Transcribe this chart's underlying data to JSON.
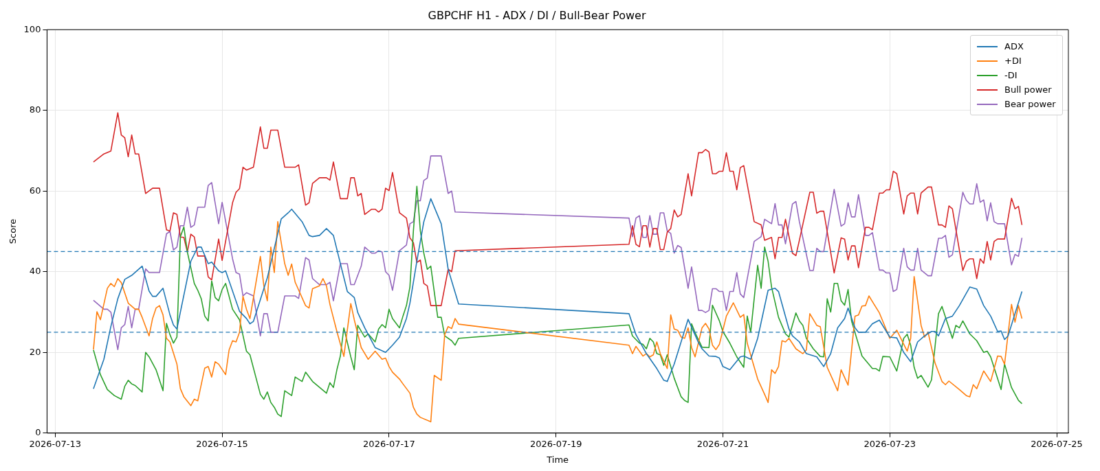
{
  "chart_data": {
    "type": "line",
    "title": "GBPCHF H1 - ADX / DI / Bull-Bear Power",
    "xlabel": "Time",
    "ylabel": "Score",
    "xlim": [
      "2026-07-12T21:39",
      "2026-07-25T03:21"
    ],
    "xticks": [
      "2026-07-13",
      "2026-07-15",
      "2026-07-17",
      "2026-07-19",
      "2026-07-21",
      "2026-07-23",
      "2026-07-25"
    ],
    "ylim": [
      0,
      100
    ],
    "yticks": [
      0,
      20,
      40,
      60,
      80,
      100
    ],
    "grid": true,
    "legend": "top right",
    "marker": "none",
    "line_style": "solid",
    "ref_lines": [
      {
        "axis": "y",
        "value": 45,
        "color": "#1f77b4",
        "line_style": "dashed"
      },
      {
        "axis": "y",
        "value": 25,
        "color": "#1f77b4",
        "line_style": "dashed"
      }
    ],
    "series": [
      {
        "name": "ADX",
        "color": "#1f77b4",
        "x": [
          "2026-07-13T11:00",
          "2026-07-13T14:00",
          "2026-07-13T16:00",
          "2026-07-13T18:00",
          "2026-07-13T20:00",
          "2026-07-13T22:00",
          "2026-07-14T01:00",
          "2026-07-14T03:00",
          "2026-07-14T04:00",
          "2026-07-14T05:00",
          "2026-07-14T07:00",
          "2026-07-14T09:00",
          "2026-07-14T10:00",
          "2026-07-14T11:00",
          "2026-07-14T15:00",
          "2026-07-14T17:00",
          "2026-07-14T18:00",
          "2026-07-14T20:00",
          "2026-07-14T21:00",
          "2026-07-14T23:00",
          "2026-07-15T00:00",
          "2026-07-15T01:00",
          "2026-07-15T05:00",
          "2026-07-15T07:00",
          "2026-07-15T08:00",
          "2026-07-15T09:00",
          "2026-07-15T13:00",
          "2026-07-15T17:00",
          "2026-07-15T19:00",
          "2026-07-15T20:00",
          "2026-07-15T23:00",
          "2026-07-16T01:00",
          "2026-07-16T02:00",
          "2026-07-16T04:00",
          "2026-07-16T06:00",
          "2026-07-16T08:00",
          "2026-07-16T12:00",
          "2026-07-16T14:00",
          "2026-07-16T15:00",
          "2026-07-16T17:00",
          "2026-07-16T20:00",
          "2026-07-16T23:00",
          "2026-07-17T01:00",
          "2026-07-17T03:00",
          "2026-07-17T05:00",
          "2026-07-17T06:00",
          "2026-07-17T08:00",
          "2026-07-17T10:00",
          "2026-07-17T12:00",
          "2026-07-17T15:00",
          "2026-07-17T17:00",
          "2026-07-17T20:00",
          "2026-07-19T21:00",
          "2026-07-19T23:00",
          "2026-07-20T02:00",
          "2026-07-20T05:00",
          "2026-07-20T07:00",
          "2026-07-20T08:00",
          "2026-07-20T10:00",
          "2026-07-20T14:00",
          "2026-07-20T17:00",
          "2026-07-20T18:00",
          "2026-07-20T20:00",
          "2026-07-20T22:00",
          "2026-07-20T23:00",
          "2026-07-21T00:00",
          "2026-07-21T02:00",
          "2026-07-21T05:00",
          "2026-07-21T06:00",
          "2026-07-21T08:00",
          "2026-07-21T10:00",
          "2026-07-21T13:00",
          "2026-07-21T15:00",
          "2026-07-21T16:00",
          "2026-07-21T19:00",
          "2026-07-21T20:00",
          "2026-07-21T22:00",
          "2026-07-22T00:00",
          "2026-07-22T03:00",
          "2026-07-22T05:00",
          "2026-07-22T07:00",
          "2026-07-22T09:00",
          "2026-07-22T11:00",
          "2026-07-22T12:00",
          "2026-07-22T14:00",
          "2026-07-22T15:00",
          "2026-07-22T17:00",
          "2026-07-22T19:00",
          "2026-07-22T21:00",
          "2026-07-23T00:00",
          "2026-07-23T02:00",
          "2026-07-23T04:00",
          "2026-07-23T06:00",
          "2026-07-23T08:00",
          "2026-07-23T10:00",
          "2026-07-23T12:00",
          "2026-07-23T13:00",
          "2026-07-23T14:00",
          "2026-07-23T16:00",
          "2026-07-23T18:00",
          "2026-07-23T20:00",
          "2026-07-23T23:00",
          "2026-07-24T01:00",
          "2026-07-24T03:00",
          "2026-07-24T05:00",
          "2026-07-24T07:00",
          "2026-07-24T08:00",
          "2026-07-24T09:00",
          "2026-07-24T10:00",
          "2026-07-24T14:00"
        ],
        "values": [
          11.0,
          18.3,
          26.4,
          33.3,
          38.1,
          39.1,
          41.4,
          35.2,
          33.9,
          33.9,
          35.9,
          29.3,
          26.8,
          25.8,
          42.6,
          46.1,
          46.1,
          42.0,
          42.4,
          40.2,
          39.8,
          40.2,
          30.2,
          28.4,
          27.1,
          27.7,
          38.5,
          53.1,
          54.6,
          55.5,
          52.4,
          49.0,
          48.7,
          49.0,
          50.7,
          49.0,
          35.1,
          33.6,
          29.9,
          26.1,
          21.2,
          20.0,
          21.8,
          23.8,
          28.4,
          32.2,
          42.6,
          52.4,
          58.1,
          51.9,
          40.6,
          32.0,
          29.6,
          24.4,
          19.7,
          16.0,
          13.1,
          12.8,
          17.1,
          28.2,
          22.4,
          20.9,
          19.1,
          19.0,
          18.6,
          16.5,
          15.7,
          18.9,
          19.1,
          18.3,
          23.5,
          35.4,
          35.9,
          35.1,
          25.8,
          24.1,
          22.6,
          19.7,
          18.9,
          16.5,
          19.7,
          26.1,
          28.4,
          31.0,
          26.1,
          25.0,
          25.0,
          27.1,
          28.0,
          23.8,
          23.6,
          20.0,
          17.7,
          22.6,
          24.1,
          25.2,
          25.2,
          24.1,
          28.4,
          29.0,
          31.6,
          36.2,
          35.7,
          31.6,
          29.0,
          25.2,
          25.3,
          23.2,
          24.1,
          35.1
        ]
      },
      {
        "name": "+DI",
        "color": "#ff7f0e",
        "x": [
          "2026-07-13T11:00",
          "2026-07-13T12:00",
          "2026-07-13T13:00",
          "2026-07-13T15:00",
          "2026-07-13T16:00",
          "2026-07-13T17:00",
          "2026-07-13T18:00",
          "2026-07-13T19:00",
          "2026-07-13T21:00",
          "2026-07-13T23:00",
          "2026-07-14T00:00",
          "2026-07-14T01:00",
          "2026-07-14T03:00",
          "2026-07-14T04:00",
          "2026-07-14T05:00",
          "2026-07-14T06:00",
          "2026-07-14T07:00",
          "2026-07-14T08:00",
          "2026-07-14T09:00",
          "2026-07-14T11:00",
          "2026-07-14T12:00",
          "2026-07-14T13:00",
          "2026-07-14T15:00",
          "2026-07-14T16:00",
          "2026-07-14T17:00",
          "2026-07-14T19:00",
          "2026-07-14T20:00",
          "2026-07-14T21:00",
          "2026-07-14T22:00",
          "2026-07-14T23:00",
          "2026-07-15T01:00",
          "2026-07-15T02:00",
          "2026-07-15T03:00",
          "2026-07-15T04:00",
          "2026-07-15T05:00",
          "2026-07-15T06:00",
          "2026-07-15T07:00",
          "2026-07-15T08:00",
          "2026-07-15T11:00",
          "2026-07-15T12:00",
          "2026-07-15T13:00",
          "2026-07-15T14:00",
          "2026-07-15T15:00",
          "2026-07-15T16:00",
          "2026-07-15T18:00",
          "2026-07-15T19:00",
          "2026-07-15T20:00",
          "2026-07-15T21:00",
          "2026-07-16T00:00",
          "2026-07-16T01:00",
          "2026-07-16T02:00",
          "2026-07-16T04:00",
          "2026-07-16T05:00",
          "2026-07-16T06:00",
          "2026-07-16T07:00",
          "2026-07-16T09:00",
          "2026-07-16T11:00",
          "2026-07-16T13:00",
          "2026-07-16T14:00",
          "2026-07-16T15:00",
          "2026-07-16T16:00",
          "2026-07-16T18:00",
          "2026-07-16T20:00",
          "2026-07-16T22:00",
          "2026-07-16T23:00",
          "2026-07-17T00:00",
          "2026-07-17T01:00",
          "2026-07-17T03:00",
          "2026-07-17T04:00",
          "2026-07-17T06:00",
          "2026-07-17T07:00",
          "2026-07-17T08:00",
          "2026-07-17T09:00",
          "2026-07-17T12:00",
          "2026-07-17T13:00",
          "2026-07-17T15:00",
          "2026-07-17T16:00",
          "2026-07-17T17:00",
          "2026-07-17T18:00",
          "2026-07-17T19:00",
          "2026-07-17T20:00",
          "2026-07-19T21:00",
          "2026-07-19T22:00",
          "2026-07-19T23:00",
          "2026-07-20T01:00",
          "2026-07-20T02:00",
          "2026-07-20T03:00",
          "2026-07-20T04:00",
          "2026-07-20T05:00",
          "2026-07-20T06:00",
          "2026-07-20T08:00",
          "2026-07-20T09:00",
          "2026-07-20T10:00",
          "2026-07-20T11:00",
          "2026-07-20T12:00",
          "2026-07-20T13:00",
          "2026-07-20T14:00",
          "2026-07-20T15:00",
          "2026-07-20T16:00",
          "2026-07-20T18:00",
          "2026-07-20T19:00",
          "2026-07-20T20:00",
          "2026-07-20T21:00",
          "2026-07-20T22:00",
          "2026-07-20T23:00",
          "2026-07-21T01:00",
          "2026-07-21T03:00",
          "2026-07-21T05:00",
          "2026-07-21T06:00",
          "2026-07-21T07:00",
          "2026-07-21T10:00",
          "2026-07-21T12:00",
          "2026-07-21T13:00",
          "2026-07-21T14:00",
          "2026-07-21T15:00",
          "2026-07-21T16:00",
          "2026-07-21T17:00",
          "2026-07-21T18:00",
          "2026-07-21T19:00",
          "2026-07-21T21:00",
          "2026-07-21T23:00",
          "2026-07-22T00:00",
          "2026-07-22T01:00",
          "2026-07-22T03:00",
          "2026-07-22T04:00",
          "2026-07-22T06:00",
          "2026-07-22T08:00",
          "2026-07-22T09:00",
          "2026-07-22T10:00",
          "2026-07-22T12:00",
          "2026-07-22T14:00",
          "2026-07-22T15:00",
          "2026-07-22T16:00",
          "2026-07-22T17:00",
          "2026-07-22T18:00",
          "2026-07-22T21:00",
          "2026-07-23T00:00",
          "2026-07-23T02:00",
          "2026-07-23T05:00",
          "2026-07-23T06:00",
          "2026-07-23T07:00",
          "2026-07-23T09:00",
          "2026-07-23T10:00",
          "2026-07-23T11:00",
          "2026-07-23T13:00",
          "2026-07-23T15:00",
          "2026-07-23T16:00",
          "2026-07-23T17:00",
          "2026-07-23T20:00",
          "2026-07-23T22:00",
          "2026-07-23T23:00",
          "2026-07-24T00:00",
          "2026-07-24T01:00",
          "2026-07-24T03:00",
          "2026-07-24T05:00",
          "2026-07-24T07:00",
          "2026-07-24T08:00",
          "2026-07-24T09:00",
          "2026-07-24T11:00",
          "2026-07-24T12:00",
          "2026-07-24T13:00",
          "2026-07-24T14:00"
        ],
        "values": [
          20.7,
          30.1,
          28.1,
          35.9,
          37.1,
          36.3,
          38.3,
          37.3,
          32.2,
          30.7,
          30.7,
          28.7,
          24.1,
          28.4,
          31.0,
          31.6,
          29.3,
          23.5,
          22.6,
          17.1,
          11.0,
          9.0,
          6.8,
          8.4,
          8.0,
          16.1,
          16.5,
          13.9,
          17.7,
          17.1,
          14.5,
          20.6,
          22.9,
          22.6,
          25.0,
          33.9,
          30.7,
          28.4,
          43.8,
          36.5,
          32.8,
          46.1,
          39.8,
          52.4,
          42.0,
          39.1,
          41.9,
          37.4,
          31.6,
          31.0,
          35.8,
          36.5,
          38.3,
          36.5,
          31.9,
          25.2,
          19.0,
          32.1,
          28.1,
          24.6,
          21.2,
          18.3,
          20.3,
          18.3,
          18.6,
          16.5,
          15.1,
          13.4,
          12.2,
          9.9,
          6.4,
          4.7,
          3.9,
          2.8,
          14.3,
          13.1,
          24.4,
          26.4,
          25.9,
          28.4,
          27.0,
          21.8,
          19.7,
          21.5,
          19.1,
          19.7,
          18.9,
          19.4,
          22.6,
          19.7,
          16.0,
          29.3,
          25.8,
          25.5,
          23.8,
          23.5,
          26.1,
          21.2,
          18.9,
          26.1,
          27.2,
          25.8,
          21.8,
          20.7,
          22.0,
          29.0,
          32.3,
          28.7,
          29.4,
          22.3,
          13.4,
          9.6,
          7.6,
          15.7,
          14.8,
          16.5,
          22.9,
          22.6,
          23.5,
          20.9,
          19.7,
          20.6,
          29.6,
          26.7,
          26.4,
          16.3,
          12.5,
          10.5,
          15.7,
          11.9,
          29.0,
          29.3,
          31.5,
          31.6,
          34.0,
          29.8,
          23.5,
          25.5,
          20.3,
          23.5,
          38.8,
          26.7,
          23.8,
          25.0,
          17.4,
          12.8,
          12.0,
          12.9,
          10.8,
          9.3,
          9.0,
          12.0,
          11.0,
          15.4,
          12.8,
          19.1,
          19.0,
          17.1,
          31.9,
          27.5,
          31.6,
          28.4
        ]
      },
      {
        "name": "-DI",
        "color": "#2ca02c",
        "x": [
          "2026-07-13T11:00",
          "2026-07-13T13:00",
          "2026-07-13T15:00",
          "2026-07-13T17:00",
          "2026-07-13T19:00",
          "2026-07-13T20:00",
          "2026-07-13T21:00",
          "2026-07-13T22:00",
          "2026-07-13T23:00",
          "2026-07-14T01:00",
          "2026-07-14T02:00",
          "2026-07-14T03:00",
          "2026-07-14T05:00",
          "2026-07-14T07:00",
          "2026-07-14T08:00",
          "2026-07-14T09:00",
          "2026-07-14T10:00",
          "2026-07-14T11:00",
          "2026-07-14T12:00",
          "2026-07-14T13:00",
          "2026-07-14T14:00",
          "2026-07-14T16:00",
          "2026-07-14T17:00",
          "2026-07-14T18:00",
          "2026-07-14T19:00",
          "2026-07-14T20:00",
          "2026-07-14T21:00",
          "2026-07-14T22:00",
          "2026-07-14T23:00",
          "2026-07-15T00:00",
          "2026-07-15T01:00",
          "2026-07-15T03:00",
          "2026-07-15T05:00",
          "2026-07-15T07:00",
          "2026-07-15T08:00",
          "2026-07-15T11:00",
          "2026-07-15T12:00",
          "2026-07-15T13:00",
          "2026-07-15T14:00",
          "2026-07-15T15:00",
          "2026-07-15T16:00",
          "2026-07-15T17:00",
          "2026-07-15T18:00",
          "2026-07-15T20:00",
          "2026-07-15T21:00",
          "2026-07-15T23:00",
          "2026-07-16T00:00",
          "2026-07-16T02:00",
          "2026-07-16T06:00",
          "2026-07-16T07:00",
          "2026-07-16T08:00",
          "2026-07-16T09:00",
          "2026-07-16T10:00",
          "2026-07-16T11:00",
          "2026-07-16T13:00",
          "2026-07-16T14:00",
          "2026-07-16T15:00",
          "2026-07-16T17:00",
          "2026-07-16T18:00",
          "2026-07-16T20:00",
          "2026-07-16T21:00",
          "2026-07-16T22:00",
          "2026-07-16T23:00",
          "2026-07-17T00:00",
          "2026-07-17T01:00",
          "2026-07-17T03:00",
          "2026-07-17T04:00",
          "2026-07-17T05:00",
          "2026-07-17T06:00",
          "2026-07-17T07:00",
          "2026-07-17T08:00",
          "2026-07-17T09:00",
          "2026-07-17T10:00",
          "2026-07-17T11:00",
          "2026-07-17T12:00",
          "2026-07-17T14:00",
          "2026-07-17T15:00",
          "2026-07-17T16:00",
          "2026-07-17T18:00",
          "2026-07-17T19:00",
          "2026-07-17T20:00",
          "2026-07-19T21:00",
          "2026-07-19T22:00",
          "2026-07-20T00:00",
          "2026-07-20T01:00",
          "2026-07-20T02:00",
          "2026-07-20T03:00",
          "2026-07-20T04:00",
          "2026-07-20T05:00",
          "2026-07-20T06:00",
          "2026-07-20T07:00",
          "2026-07-20T08:00",
          "2026-07-20T10:00",
          "2026-07-20T12:00",
          "2026-07-20T13:00",
          "2026-07-20T14:00",
          "2026-07-20T15:00",
          "2026-07-20T16:00",
          "2026-07-20T18:00",
          "2026-07-20T20:00",
          "2026-07-20T21:00",
          "2026-07-20T23:00",
          "2026-07-21T00:00",
          "2026-07-21T02:00",
          "2026-07-21T04:00",
          "2026-07-21T06:00",
          "2026-07-21T07:00",
          "2026-07-21T08:00",
          "2026-07-21T10:00",
          "2026-07-21T11:00",
          "2026-07-21T12:00",
          "2026-07-21T13:00",
          "2026-07-21T14:00",
          "2026-07-21T16:00",
          "2026-07-21T18:00",
          "2026-07-21T19:00",
          "2026-07-21T21:00",
          "2026-07-21T22:00",
          "2026-07-21T23:00",
          "2026-07-22T00:00",
          "2026-07-22T02:00",
          "2026-07-22T04:00",
          "2026-07-22T05:00",
          "2026-07-22T06:00",
          "2026-07-22T07:00",
          "2026-07-22T08:00",
          "2026-07-22T09:00",
          "2026-07-22T10:00",
          "2026-07-22T11:00",
          "2026-07-22T12:00",
          "2026-07-22T13:00",
          "2026-07-22T16:00",
          "2026-07-22T19:00",
          "2026-07-22T20:00",
          "2026-07-22T21:00",
          "2026-07-22T22:00",
          "2026-07-23T00:00",
          "2026-07-23T02:00",
          "2026-07-23T04:00",
          "2026-07-23T05:00",
          "2026-07-23T06:00",
          "2026-07-23T07:00",
          "2026-07-23T08:00",
          "2026-07-23T09:00",
          "2026-07-23T11:00",
          "2026-07-23T12:00",
          "2026-07-23T14:00",
          "2026-07-23T15:00",
          "2026-07-23T18:00",
          "2026-07-23T19:00",
          "2026-07-23T20:00",
          "2026-07-23T21:00",
          "2026-07-23T23:00",
          "2026-07-24T01:00",
          "2026-07-24T03:00",
          "2026-07-24T04:00",
          "2026-07-24T05:00",
          "2026-07-24T08:00",
          "2026-07-24T09:00",
          "2026-07-24T10:00",
          "2026-07-24T11:00",
          "2026-07-24T13:00",
          "2026-07-24T14:00"
        ],
        "values": [
          20.6,
          14.5,
          10.8,
          9.3,
          8.4,
          11.6,
          13.1,
          12.2,
          11.8,
          10.2,
          20.0,
          18.9,
          15.7,
          10.5,
          27.2,
          24.4,
          22.3,
          23.8,
          48.7,
          51.1,
          44.9,
          37.1,
          35.4,
          33.3,
          29.0,
          27.8,
          37.7,
          33.6,
          32.8,
          35.6,
          37.1,
          30.7,
          28.1,
          20.3,
          19.4,
          9.6,
          8.4,
          10.2,
          7.6,
          6.4,
          4.7,
          4.1,
          10.5,
          9.3,
          13.9,
          12.8,
          15.1,
          12.8,
          9.9,
          12.5,
          11.3,
          15.7,
          19.1,
          26.1,
          18.9,
          15.7,
          26.7,
          23.8,
          24.6,
          22.6,
          25.8,
          26.9,
          26.1,
          30.7,
          28.4,
          26.1,
          29.0,
          31.6,
          36.2,
          50.1,
          61.2,
          50.1,
          44.6,
          40.6,
          41.4,
          28.7,
          28.7,
          24.1,
          22.9,
          21.8,
          23.5,
          26.8,
          24.1,
          22.3,
          22.0,
          20.9,
          23.5,
          22.6,
          19.7,
          19.4,
          16.8,
          19.4,
          13.6,
          9.0,
          8.1,
          7.6,
          27.1,
          24.9,
          21.3,
          21.2,
          31.7,
          27.8,
          25.2,
          22.3,
          18.9,
          16.3,
          29.0,
          25.0,
          41.6,
          35.9,
          46.1,
          42.6,
          36.2,
          28.7,
          24.6,
          23.8,
          29.8,
          27.8,
          26.7,
          23.5,
          20.9,
          19.0,
          18.9,
          33.3,
          30.0,
          37.1,
          37.1,
          32.8,
          31.7,
          35.6,
          27.8,
          19.1,
          16.0,
          16.0,
          15.4,
          19.0,
          18.9,
          15.4,
          23.5,
          24.5,
          21.8,
          16.3,
          13.6,
          14.3,
          11.4,
          13.2,
          29.6,
          31.4,
          23.5,
          26.7,
          26.1,
          27.8,
          24.6,
          22.9,
          20.0,
          20.3,
          18.9,
          10.8,
          17.1,
          14.2,
          11.3,
          8.1,
          7.3
        ]
      },
      {
        "name": "Bull power",
        "color": "#d62728",
        "x": [
          "2026-07-13T11:00",
          "2026-07-13T14:00",
          "2026-07-13T16:00",
          "2026-07-13T18:00",
          "2026-07-13T19:00",
          "2026-07-13T20:00",
          "2026-07-13T21:00",
          "2026-07-13T22:00",
          "2026-07-13T23:00",
          "2026-07-14T00:00",
          "2026-07-14T02:00",
          "2026-07-14T04:00",
          "2026-07-14T06:00",
          "2026-07-14T08:00",
          "2026-07-14T09:00",
          "2026-07-14T10:00",
          "2026-07-14T11:00",
          "2026-07-14T12:00",
          "2026-07-14T13:00",
          "2026-07-14T14:00",
          "2026-07-14T15:00",
          "2026-07-14T16:00",
          "2026-07-14T17:00",
          "2026-07-14T19:00",
          "2026-07-14T20:00",
          "2026-07-14T21:00",
          "2026-07-14T23:00",
          "2026-07-15T00:00",
          "2026-07-15T03:00",
          "2026-07-15T04:00",
          "2026-07-15T05:00",
          "2026-07-15T06:00",
          "2026-07-15T07:00",
          "2026-07-15T09:00",
          "2026-07-15T11:00",
          "2026-07-15T12:00",
          "2026-07-15T13:00",
          "2026-07-15T14:00",
          "2026-07-15T16:00",
          "2026-07-15T18:00",
          "2026-07-15T21:00",
          "2026-07-15T22:00",
          "2026-07-16T00:00",
          "2026-07-16T01:00",
          "2026-07-16T02:00",
          "2026-07-16T04:00",
          "2026-07-16T06:00",
          "2026-07-16T07:00",
          "2026-07-16T08:00",
          "2026-07-16T10:00",
          "2026-07-16T12:00",
          "2026-07-16T13:00",
          "2026-07-16T14:00",
          "2026-07-16T15:00",
          "2026-07-16T16:00",
          "2026-07-16T17:00",
          "2026-07-16T19:00",
          "2026-07-16T20:00",
          "2026-07-16T21:00",
          "2026-07-16T22:00",
          "2026-07-16T23:00",
          "2026-07-17T00:00",
          "2026-07-17T01:00",
          "2026-07-17T03:00",
          "2026-07-17T05:00",
          "2026-07-17T06:00",
          "2026-07-17T07:00",
          "2026-07-17T08:00",
          "2026-07-17T09:00",
          "2026-07-17T10:00",
          "2026-07-17T11:00",
          "2026-07-17T12:00",
          "2026-07-17T15:00",
          "2026-07-17T17:00",
          "2026-07-17T18:00",
          "2026-07-17T19:00",
          "2026-07-19T21:00",
          "2026-07-19T22:00",
          "2026-07-19T23:00",
          "2026-07-20T00:00",
          "2026-07-20T01:00",
          "2026-07-20T02:00",
          "2026-07-20T03:00",
          "2026-07-20T04:00",
          "2026-07-20T05:00",
          "2026-07-20T06:00",
          "2026-07-20T07:00",
          "2026-07-20T08:00",
          "2026-07-20T09:00",
          "2026-07-20T10:00",
          "2026-07-20T11:00",
          "2026-07-20T12:00",
          "2026-07-20T14:00",
          "2026-07-20T15:00",
          "2026-07-20T17:00",
          "2026-07-20T18:00",
          "2026-07-20T19:00",
          "2026-07-20T20:00",
          "2026-07-20T21:00",
          "2026-07-20T22:00",
          "2026-07-20T23:00",
          "2026-07-21T00:00",
          "2026-07-21T01:00",
          "2026-07-21T02:00",
          "2026-07-21T03:00",
          "2026-07-21T04:00",
          "2026-07-21T05:00",
          "2026-07-21T06:00",
          "2026-07-21T09:00",
          "2026-07-21T11:00",
          "2026-07-21T12:00",
          "2026-07-21T14:00",
          "2026-07-21T15:00",
          "2026-07-21T16:00",
          "2026-07-21T17:00",
          "2026-07-21T18:00",
          "2026-07-21T20:00",
          "2026-07-21T21:00",
          "2026-07-21T22:00",
          "2026-07-22T01:00",
          "2026-07-22T02:00",
          "2026-07-22T03:00",
          "2026-07-22T04:00",
          "2026-07-22T05:00",
          "2026-07-22T08:00",
          "2026-07-22T10:00",
          "2026-07-22T11:00",
          "2026-07-22T12:00",
          "2026-07-22T13:00",
          "2026-07-22T14:00",
          "2026-07-22T15:00",
          "2026-07-22T17:00",
          "2026-07-22T18:00",
          "2026-07-22T19:00",
          "2026-07-22T21:00",
          "2026-07-22T22:00",
          "2026-07-22T23:00",
          "2026-07-23T00:00",
          "2026-07-23T01:00",
          "2026-07-23T02:00",
          "2026-07-23T04:00",
          "2026-07-23T05:00",
          "2026-07-23T06:00",
          "2026-07-23T07:00",
          "2026-07-23T08:00",
          "2026-07-23T09:00",
          "2026-07-23T11:00",
          "2026-07-23T12:00",
          "2026-07-23T14:00",
          "2026-07-23T15:00",
          "2026-07-23T16:00",
          "2026-07-23T17:00",
          "2026-07-23T18:00",
          "2026-07-23T21:00",
          "2026-07-23T22:00",
          "2026-07-23T23:00",
          "2026-07-24T00:00",
          "2026-07-24T01:00",
          "2026-07-24T02:00",
          "2026-07-24T03:00",
          "2026-07-24T04:00",
          "2026-07-24T05:00",
          "2026-07-24T06:00",
          "2026-07-24T07:00",
          "2026-07-24T09:00",
          "2026-07-24T11:00",
          "2026-07-24T12:00",
          "2026-07-24T13:00",
          "2026-07-24T14:00"
        ],
        "values": [
          67.2,
          69.2,
          69.9,
          79.4,
          73.9,
          73.2,
          68.5,
          73.9,
          69.2,
          69.2,
          59.4,
          60.7,
          60.7,
          50.4,
          50.1,
          54.6,
          54.2,
          48.6,
          48.5,
          44.9,
          49.3,
          48.6,
          43.9,
          43.9,
          38.7,
          38.0,
          48.1,
          42.8,
          57.1,
          59.7,
          60.6,
          65.9,
          65.2,
          65.9,
          75.9,
          70.6,
          70.6,
          75.1,
          75.1,
          65.9,
          65.9,
          66.5,
          56.5,
          57.1,
          61.9,
          63.3,
          63.3,
          62.7,
          67.2,
          58.1,
          58.1,
          63.3,
          63.3,
          58.8,
          59.4,
          54.2,
          55.5,
          55.5,
          54.8,
          55.5,
          60.7,
          60.1,
          64.6,
          54.6,
          53.3,
          48.4,
          47.2,
          42.3,
          42.9,
          37.1,
          36.5,
          31.6,
          31.6,
          40.6,
          40.0,
          45.2,
          46.8,
          51.4,
          46.8,
          46.2,
          51.4,
          51.4,
          46.1,
          50.7,
          50.7,
          45.5,
          45.5,
          49.8,
          50.7,
          55.3,
          53.6,
          54.2,
          64.3,
          58.8,
          69.5,
          69.5,
          70.3,
          69.7,
          64.3,
          64.3,
          64.9,
          64.9,
          69.5,
          64.9,
          64.9,
          60.3,
          65.8,
          66.3,
          52.4,
          51.6,
          47.8,
          48.5,
          43.2,
          48.5,
          48.5,
          53.0,
          44.6,
          44.0,
          47.8,
          59.7,
          59.7,
          54.5,
          55.0,
          55.0,
          39.7,
          48.4,
          48.1,
          42.9,
          46.4,
          46.4,
          41.0,
          51.0,
          51.0,
          50.4,
          59.5,
          59.5,
          60.3,
          60.3,
          64.9,
          64.3,
          54.3,
          58.8,
          59.5,
          59.5,
          54.3,
          59.5,
          61.0,
          61.0,
          51.6,
          51.6,
          51.0,
          56.3,
          55.6,
          40.3,
          42.6,
          43.2,
          43.2,
          38.3,
          43.2,
          42.1,
          47.5,
          42.9,
          47.5,
          48.1,
          48.1,
          58.2,
          55.6,
          56.2,
          51.6
        ]
      },
      {
        "name": "Bear power",
        "color": "#9467bd",
        "x": [
          "2026-07-13T11:00",
          "2026-07-13T14:00",
          "2026-07-13T15:00",
          "2026-07-13T16:00",
          "2026-07-13T18:00",
          "2026-07-13T19:00",
          "2026-07-13T20:00",
          "2026-07-13T21:00",
          "2026-07-13T22:00",
          "2026-07-13T23:00",
          "2026-07-14T00:00",
          "2026-07-14T02:00",
          "2026-07-14T03:00",
          "2026-07-14T06:00",
          "2026-07-14T08:00",
          "2026-07-14T09:00",
          "2026-07-14T10:00",
          "2026-07-14T11:00",
          "2026-07-14T12:00",
          "2026-07-14T13:00",
          "2026-07-14T14:00",
          "2026-07-14T15:00",
          "2026-07-14T16:00",
          "2026-07-14T17:00",
          "2026-07-14T19:00",
          "2026-07-14T20:00",
          "2026-07-14T21:00",
          "2026-07-14T23:00",
          "2026-07-15T00:00",
          "2026-07-15T03:00",
          "2026-07-15T04:00",
          "2026-07-15T05:00",
          "2026-07-15T06:00",
          "2026-07-15T07:00",
          "2026-07-15T09:00",
          "2026-07-15T11:00",
          "2026-07-15T12:00",
          "2026-07-15T13:00",
          "2026-07-15T14:00",
          "2026-07-15T16:00",
          "2026-07-15T18:00",
          "2026-07-15T21:00",
          "2026-07-15T22:00",
          "2026-07-16T00:00",
          "2026-07-16T01:00",
          "2026-07-16T02:00",
          "2026-07-16T04:00",
          "2026-07-16T06:00",
          "2026-07-16T07:00",
          "2026-07-16T08:00",
          "2026-07-16T10:00",
          "2026-07-16T12:00",
          "2026-07-16T13:00",
          "2026-07-16T14:00",
          "2026-07-16T16:00",
          "2026-07-16T17:00",
          "2026-07-16T19:00",
          "2026-07-16T20:00",
          "2026-07-16T21:00",
          "2026-07-16T22:00",
          "2026-07-16T23:00",
          "2026-07-17T00:00",
          "2026-07-17T01:00",
          "2026-07-17T03:00",
          "2026-07-17T05:00",
          "2026-07-17T06:00",
          "2026-07-17T07:00",
          "2026-07-17T08:00",
          "2026-07-17T09:00",
          "2026-07-17T10:00",
          "2026-07-17T11:00",
          "2026-07-17T12:00",
          "2026-07-17T15:00",
          "2026-07-17T17:00",
          "2026-07-17T18:00",
          "2026-07-17T19:00",
          "2026-07-19T21:00",
          "2026-07-19T22:00",
          "2026-07-19T23:00",
          "2026-07-20T00:00",
          "2026-07-20T01:00",
          "2026-07-20T02:00",
          "2026-07-20T03:00",
          "2026-07-20T04:00",
          "2026-07-20T05:00",
          "2026-07-20T06:00",
          "2026-07-20T07:00",
          "2026-07-20T08:00",
          "2026-07-20T09:00",
          "2026-07-20T10:00",
          "2026-07-20T11:00",
          "2026-07-20T12:00",
          "2026-07-20T14:00",
          "2026-07-20T15:00",
          "2026-07-20T17:00",
          "2026-07-20T18:00",
          "2026-07-20T19:00",
          "2026-07-20T20:00",
          "2026-07-20T21:00",
          "2026-07-20T22:00",
          "2026-07-20T23:00",
          "2026-07-21T00:00",
          "2026-07-21T01:00",
          "2026-07-21T02:00",
          "2026-07-21T03:00",
          "2026-07-21T04:00",
          "2026-07-21T05:00",
          "2026-07-21T06:00",
          "2026-07-21T09:00",
          "2026-07-21T11:00",
          "2026-07-21T12:00",
          "2026-07-21T14:00",
          "2026-07-21T15:00",
          "2026-07-21T16:00",
          "2026-07-21T17:00",
          "2026-07-21T18:00",
          "2026-07-21T20:00",
          "2026-07-21T21:00",
          "2026-07-21T22:00",
          "2026-07-22T01:00",
          "2026-07-22T02:00",
          "2026-07-22T03:00",
          "2026-07-22T04:00",
          "2026-07-22T05:00",
          "2026-07-22T08:00",
          "2026-07-22T10:00",
          "2026-07-22T11:00",
          "2026-07-22T12:00",
          "2026-07-22T13:00",
          "2026-07-22T14:00",
          "2026-07-22T15:00",
          "2026-07-22T17:00",
          "2026-07-22T18:00",
          "2026-07-22T19:00",
          "2026-07-22T21:00",
          "2026-07-22T22:00",
          "2026-07-22T23:00",
          "2026-07-23T00:00",
          "2026-07-23T01:00",
          "2026-07-23T02:00",
          "2026-07-23T04:00",
          "2026-07-23T05:00",
          "2026-07-23T06:00",
          "2026-07-23T07:00",
          "2026-07-23T08:00",
          "2026-07-23T09:00",
          "2026-07-23T11:00",
          "2026-07-23T12:00",
          "2026-07-23T14:00",
          "2026-07-23T15:00",
          "2026-07-23T16:00",
          "2026-07-23T17:00",
          "2026-07-23T18:00",
          "2026-07-23T21:00",
          "2026-07-23T22:00",
          "2026-07-23T23:00",
          "2026-07-24T00:00",
          "2026-07-24T01:00",
          "2026-07-24T02:00",
          "2026-07-24T03:00",
          "2026-07-24T04:00",
          "2026-07-24T05:00",
          "2026-07-24T06:00",
          "2026-07-24T07:00",
          "2026-07-24T09:00",
          "2026-07-24T11:00",
          "2026-07-24T12:00",
          "2026-07-24T13:00",
          "2026-07-24T14:00"
        ],
        "values": [
          32.9,
          30.7,
          30.7,
          30.0,
          20.7,
          26.1,
          26.9,
          31.4,
          26.1,
          30.7,
          30.7,
          40.7,
          39.8,
          39.8,
          49.4,
          50.0,
          45.4,
          46.1,
          51.4,
          51.4,
          56.0,
          51.0,
          51.6,
          56.0,
          56.0,
          61.4,
          62.1,
          51.9,
          57.2,
          43.2,
          39.8,
          39.4,
          34.0,
          34.8,
          34.0,
          24.1,
          29.6,
          29.6,
          25.0,
          25.0,
          34.0,
          34.0,
          33.4,
          43.5,
          42.9,
          38.3,
          36.8,
          36.8,
          37.4,
          32.8,
          42.0,
          42.0,
          36.8,
          36.8,
          41.4,
          46.1,
          44.6,
          44.6,
          45.2,
          44.9,
          40.0,
          39.1,
          35.4,
          45.2,
          46.6,
          51.9,
          52.4,
          57.6,
          57.6,
          62.6,
          63.2,
          68.7,
          68.7,
          59.4,
          60.0,
          54.8,
          53.3,
          48.7,
          53.3,
          53.9,
          48.5,
          48.5,
          53.9,
          49.3,
          49.3,
          54.6,
          54.6,
          50.1,
          49.5,
          44.6,
          46.5,
          46.0,
          35.9,
          41.2,
          30.4,
          30.4,
          29.9,
          30.4,
          35.8,
          35.8,
          35.1,
          35.1,
          30.4,
          35.1,
          35.1,
          39.8,
          34.5,
          33.6,
          47.5,
          48.7,
          53.0,
          51.9,
          56.9,
          51.6,
          51.6,
          46.9,
          56.8,
          57.4,
          52.4,
          40.3,
          40.3,
          45.8,
          45.0,
          45.0,
          60.4,
          51.3,
          51.9,
          57.1,
          53.6,
          53.6,
          59.1,
          49.0,
          49.0,
          49.7,
          40.4,
          40.4,
          39.7,
          39.7,
          35.1,
          35.6,
          45.8,
          41.2,
          40.4,
          40.4,
          45.8,
          40.4,
          39.0,
          39.0,
          48.3,
          48.3,
          49.0,
          43.6,
          44.2,
          59.7,
          57.7,
          56.8,
          56.8,
          61.8,
          57.2,
          57.8,
          52.6,
          57.1,
          52.4,
          51.9,
          51.9,
          41.7,
          44.3,
          43.8,
          48.4
        ]
      }
    ]
  }
}
